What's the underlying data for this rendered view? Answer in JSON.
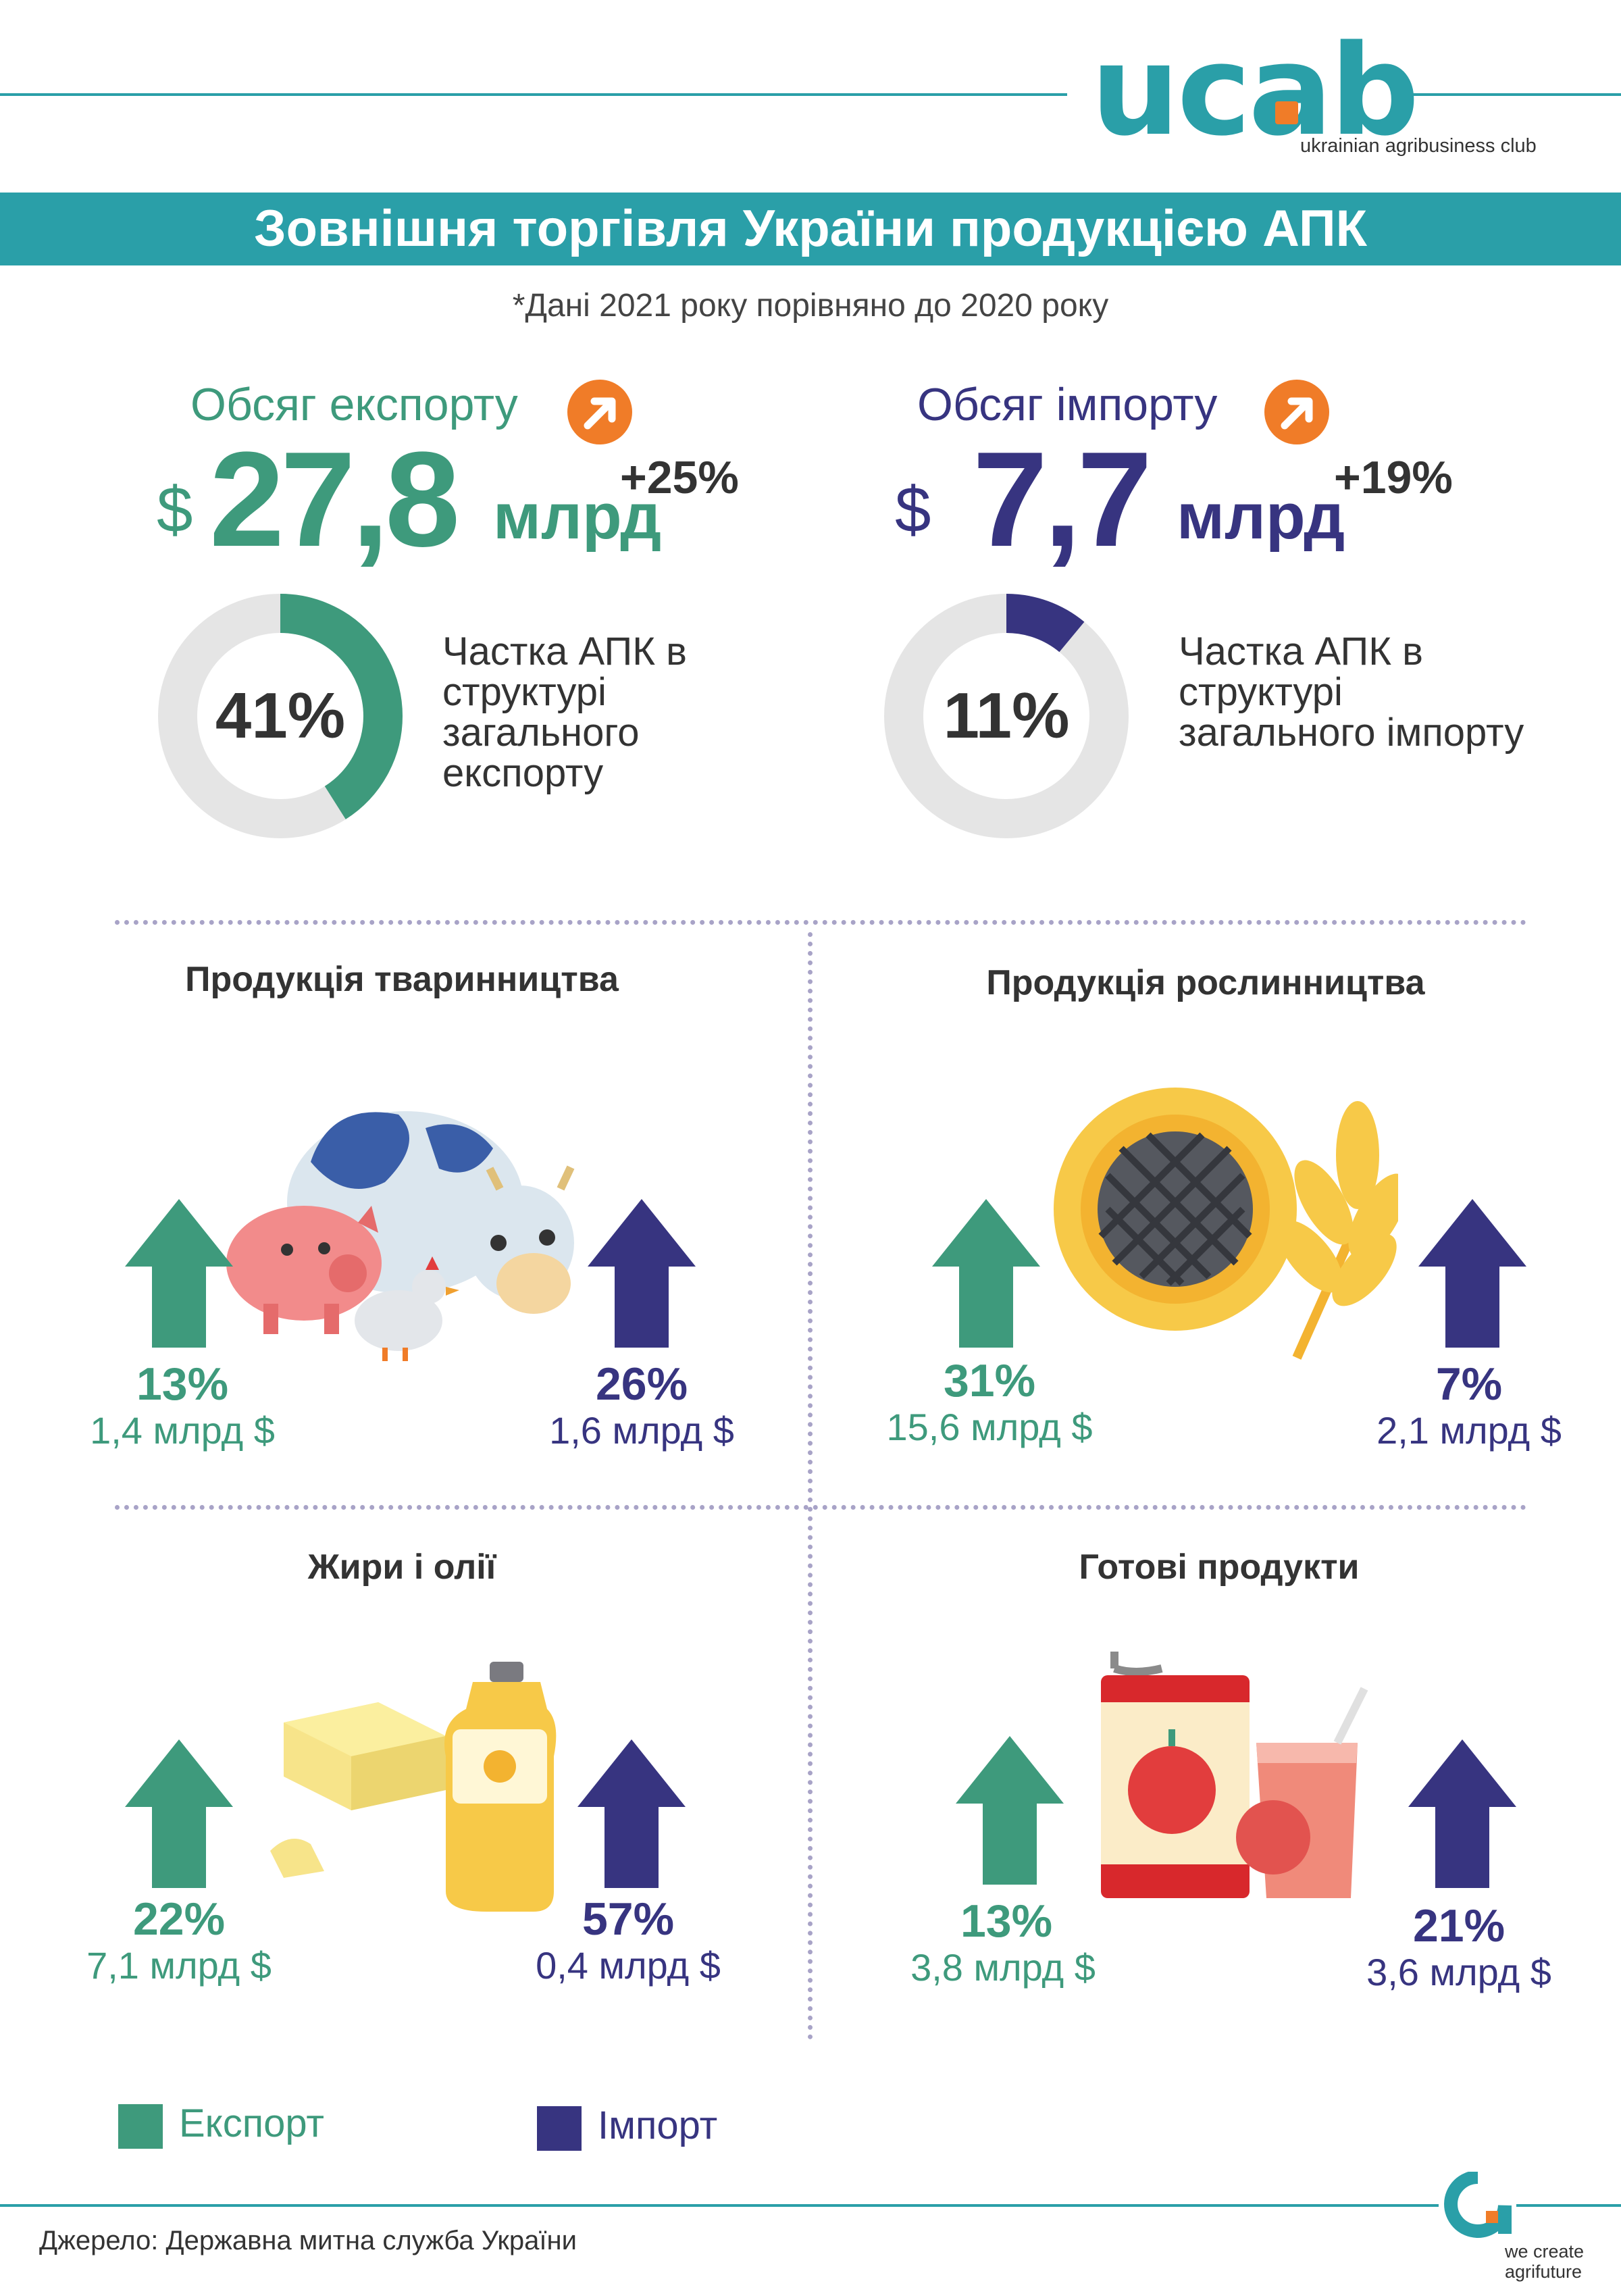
{
  "header": {
    "logo": "ucab",
    "logo_subtitle": "ukrainian agribusiness club",
    "title": "Зовнішня торгівля України продукцією АПК",
    "note": "*Дані 2021 року порівняно до 2020 року"
  },
  "export_kpi": {
    "label": "Обсяг експорту",
    "currency": "$",
    "value": "27,8",
    "unit": "млрд",
    "change": "+25%",
    "share_value": "41%",
    "share_fraction": 0.41,
    "share_text": "Частка АПК в структурі загального експорту",
    "color": "#3e9a7c"
  },
  "import_kpi": {
    "label": "Обсяг імпорту",
    "currency": "$",
    "value": "7,7",
    "unit": "млрд",
    "change": "+19%",
    "share_value": "11%",
    "share_fraction": 0.11,
    "share_text": "Частка АПК в структурі загального імпорту",
    "color": "#373480"
  },
  "sections": [
    {
      "title": "Продукція тваринництва",
      "export_pct": "13%",
      "export_val": "1,4 млрд $",
      "import_pct": "26%",
      "import_val": "1,6 млрд $",
      "icon": "livestock-icon"
    },
    {
      "title": "Продукція рослинництва",
      "export_pct": "31%",
      "export_val": "15,6 млрд $",
      "import_pct": "7%",
      "import_val": "2,1 млрд $",
      "icon": "sunflower-wheat-icon"
    },
    {
      "title": "Жири і олії",
      "export_pct": "22%",
      "export_val": "7,1 млрд $",
      "import_pct": "57%",
      "import_val": "0,4 млрд $",
      "icon": "butter-oil-icon"
    },
    {
      "title": "Готові продукти",
      "export_pct": "13%",
      "export_val": "3,8 млрд $",
      "import_pct": "21%",
      "import_val": "3,6 млрд $",
      "icon": "canned-juice-icon"
    }
  ],
  "legend": {
    "export": "Експорт",
    "import": "Імпорт"
  },
  "footer": {
    "source": "Джерело: Державна митна служба України",
    "tagline_1": "we create",
    "tagline_2": "agrifuture"
  },
  "colors": {
    "teal": "#2a9fa8",
    "export_green": "#3e9a7c",
    "import_navy": "#373480",
    "accent_orange": "#f07c28",
    "donut_track": "#e5e5e5"
  }
}
